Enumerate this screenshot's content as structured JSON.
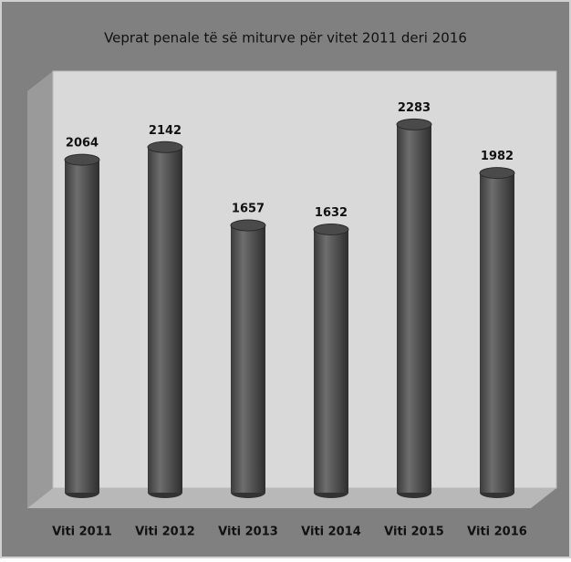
{
  "chart_data": {
    "type": "bar",
    "title": "Veprat penale të së miturve për vitet 2011 deri 2016",
    "categories": [
      "Viti 2011",
      "Viti 2012",
      "Viti 2013",
      "Viti 2014",
      "Viti 2015",
      "Viti 2016"
    ],
    "values": [
      2064,
      2142,
      1657,
      1632,
      2283,
      1982
    ],
    "color": "#555555",
    "ylim": [
      0,
      2500
    ]
  }
}
